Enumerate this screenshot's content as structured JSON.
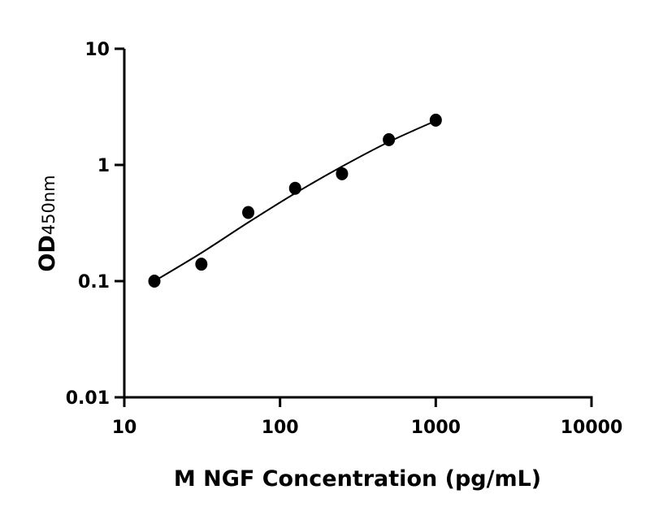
{
  "chart_data": {
    "type": "scatter",
    "title": "",
    "xlabel": "M NGF Concentration (pg/mL)",
    "ylabel_main": "OD",
    "ylabel_sub": "450nm",
    "xscale": "log",
    "yscale": "log",
    "xlim": [
      10,
      10000
    ],
    "ylim": [
      0.01,
      10
    ],
    "x_ticks": [
      "10",
      "100",
      "1000",
      "10000"
    ],
    "y_ticks": [
      "0.01",
      "0.1",
      "1",
      "10"
    ],
    "grid": false,
    "marker_color": "#000000",
    "points": {
      "x": [
        15.6,
        31.25,
        62.5,
        125,
        250,
        500,
        1000
      ],
      "y": [
        0.1,
        0.14,
        0.39,
        0.63,
        0.84,
        1.65,
        2.43
      ]
    },
    "fit_curve": {
      "x": [
        15.6,
        31.25,
        62.5,
        125,
        250,
        500,
        1000
      ],
      "y": [
        0.1,
        0.175,
        0.32,
        0.57,
        0.97,
        1.58,
        2.4
      ]
    }
  }
}
